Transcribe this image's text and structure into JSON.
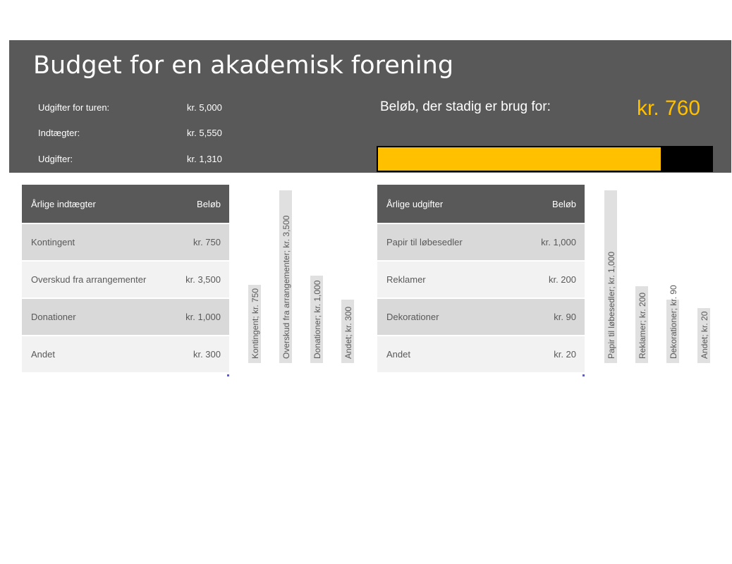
{
  "header": {
    "title": "Budget for en akademisk forening",
    "summary": [
      {
        "label": "Udgifter for turen:",
        "value": "kr. 5,000"
      },
      {
        "label": "Indtægter:",
        "value": "kr. 5,550"
      },
      {
        "label": "Udgifter:",
        "value": "kr. 1,310"
      }
    ],
    "needed_label": "Beløb, der stadig er brug for:",
    "needed_value": "kr. 760",
    "progress_fraction": 0.848,
    "colors": {
      "band": "#595959",
      "accent": "#ffc000",
      "bar_bg": "#000000"
    }
  },
  "income": {
    "header": {
      "label": "Årlige indtægter",
      "amount": "Beløb"
    },
    "rows": [
      {
        "label": "Kontingent",
        "amount": "kr. 750"
      },
      {
        "label": "Overskud fra arrangementer",
        "amount": "kr. 3,500"
      },
      {
        "label": "Donationer",
        "amount": "kr. 1,000"
      },
      {
        "label": "Andet",
        "amount": "kr. 300"
      }
    ]
  },
  "expenses": {
    "header": {
      "label": "Årlige udgifter",
      "amount": "Beløb"
    },
    "rows": [
      {
        "label": "Papir til løbesedler",
        "amount": "kr. 1,000"
      },
      {
        "label": "Reklamer",
        "amount": "kr. 200"
      },
      {
        "label": "Dekorationer",
        "amount": "kr. 90"
      },
      {
        "label": "Andet",
        "amount": "kr. 20"
      }
    ]
  },
  "chart_data": [
    {
      "type": "bar",
      "categories": [
        "Kontingent",
        "Overskud fra arrangementer",
        "Donationer",
        "Andet"
      ],
      "values": [
        750,
        3500,
        1000,
        300
      ],
      "labels": [
        "Kontingent; kr. 750",
        "Overskud fra arrangementer; kr. 3,500",
        "Donationer; kr. 1,000",
        "Andet; kr. 300"
      ],
      "ylim": [
        0,
        3500
      ],
      "grid": false
    },
    {
      "type": "bar",
      "categories": [
        "Papir til løbesedler",
        "Reklamer",
        "Dekorationer",
        "Andet"
      ],
      "values": [
        1000,
        200,
        90,
        20
      ],
      "labels": [
        "Papir til løbesedler; kr. 1,000",
        "Reklamer; kr. 200",
        "Dekorationer; kr. 90",
        "Andet; kr. 20"
      ],
      "ylim": [
        0,
        1000
      ],
      "grid": false
    }
  ]
}
